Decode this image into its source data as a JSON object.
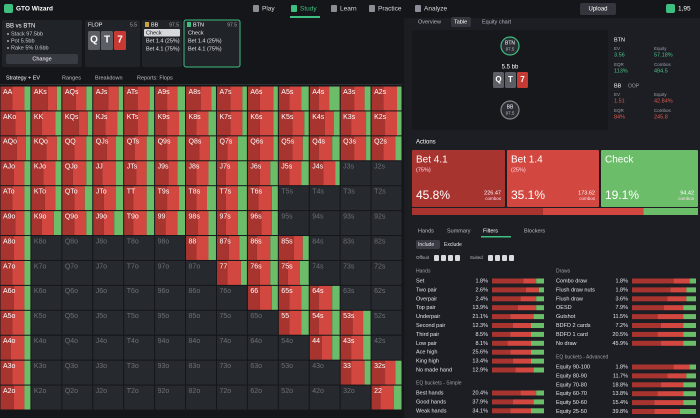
{
  "nav": {
    "brand": "GTO Wizard",
    "items": [
      "Play",
      "Study",
      "Learn",
      "Practice",
      "Analyze"
    ],
    "upload": "Upload",
    "balance": "1,95"
  },
  "spot": {
    "title": "BB vs BTN",
    "lines": [
      "Stack 97.5bb",
      "Pot 5.5bb",
      "Rake 5% 0.6bb"
    ],
    "button": "Change"
  },
  "flop": {
    "label": "FLOP",
    "pot": "5.5",
    "cards": [
      "Q",
      "T",
      "7"
    ]
  },
  "players": [
    {
      "name": "BB",
      "stack": "97.5",
      "options": [
        "Check",
        "Bet 1.4 (25%)",
        "Bet 4.1 (75%)"
      ]
    },
    {
      "name": "BTN",
      "stack": "97.5",
      "options": [
        "Check",
        "Bet 1.4 (25%)",
        "Bet 4.1 (75%)"
      ]
    }
  ],
  "toolbar": [
    "Strategy + EV",
    "Ranges",
    "Breakdown",
    "Reports: Flops"
  ],
  "grid": {
    "hands": [
      [
        "AA",
        "AKs",
        "AQs",
        "AJs",
        "ATs",
        "A9s",
        "A8s",
        "A7s",
        "A6s",
        "A5s",
        "A4s",
        "A3s",
        "A2s"
      ],
      [
        "AKo",
        "KK",
        "KQs",
        "KJs",
        "KTs",
        "K9s",
        "K8s",
        "K7s",
        "K6s",
        "K5s",
        "K4s",
        "K3s",
        "K2s"
      ],
      [
        "AQo",
        "KQo",
        "QQ",
        "QJs",
        "QTs",
        "Q9s",
        "Q8s",
        "Q7s",
        "Q6s",
        "Q5s",
        "Q4s",
        "Q3s",
        "Q2s"
      ],
      [
        "AJo",
        "KJo",
        "QJo",
        "JJ",
        "JTs",
        "J9s",
        "J8s",
        "J7s",
        "J6s",
        "J5s",
        "J4s",
        "J3s",
        "J2s"
      ],
      [
        "ATo",
        "KTo",
        "QTo",
        "JTo",
        "TT",
        "T9s",
        "T8s",
        "T7s",
        "T6s",
        "T5s",
        "T4s",
        "T3s",
        "T2s"
      ],
      [
        "A9o",
        "K9o",
        "Q9o",
        "J9o",
        "T9o",
        "99",
        "98s",
        "97s",
        "96s",
        "95s",
        "94s",
        "93s",
        "92s"
      ],
      [
        "A8o",
        "K8o",
        "Q8o",
        "J8o",
        "T8o",
        "98o",
        "88",
        "87s",
        "86s",
        "85s",
        "84s",
        "83s",
        "82s"
      ],
      [
        "A7o",
        "K7o",
        "Q7o",
        "J7o",
        "T7o",
        "97o",
        "87o",
        "77",
        "76s",
        "75s",
        "74s",
        "73s",
        "72s"
      ],
      [
        "A6o",
        "K6o",
        "Q6o",
        "J6o",
        "T6o",
        "96o",
        "86o",
        "76o",
        "66",
        "65s",
        "64s",
        "63s",
        "62s"
      ],
      [
        "A5o",
        "K5o",
        "Q5o",
        "J5o",
        "T5o",
        "95o",
        "85o",
        "75o",
        "65o",
        "55",
        "54s",
        "53s",
        "52s"
      ],
      [
        "A4o",
        "K4o",
        "Q4o",
        "J4o",
        "T4o",
        "94o",
        "84o",
        "74o",
        "64o",
        "54o",
        "44",
        "43s",
        "42s"
      ],
      [
        "A3o",
        "K3o",
        "Q3o",
        "J3o",
        "T3o",
        "93o",
        "83o",
        "73o",
        "63o",
        "53o",
        "43o",
        "33",
        "32s"
      ],
      [
        "A2o",
        "K2o",
        "Q2o",
        "J2o",
        "T2o",
        "92o",
        "82o",
        "72o",
        "62o",
        "52o",
        "42o",
        "32o",
        "22"
      ]
    ],
    "mix": [
      [
        [
          40,
          40,
          20
        ],
        [
          55,
          30,
          15
        ],
        [
          45,
          35,
          20
        ],
        [
          50,
          35,
          15
        ],
        [
          45,
          40,
          15
        ],
        [
          40,
          35,
          25
        ],
        [
          50,
          35,
          15
        ],
        [
          45,
          40,
          15
        ],
        [
          40,
          45,
          15
        ],
        [
          35,
          40,
          25
        ],
        [
          30,
          35,
          35
        ],
        [
          45,
          35,
          20
        ],
        [
          40,
          45,
          15
        ]
      ],
      [
        [
          50,
          35,
          15
        ],
        [
          35,
          45,
          20
        ],
        [
          55,
          30,
          15
        ],
        [
          40,
          40,
          20
        ],
        [
          45,
          35,
          20
        ],
        [
          40,
          40,
          20
        ],
        [
          35,
          40,
          25
        ],
        [
          45,
          40,
          15
        ],
        [
          40,
          45,
          15
        ],
        [
          45,
          40,
          15
        ],
        [
          50,
          30,
          20
        ],
        [
          35,
          50,
          15
        ],
        [
          45,
          40,
          15
        ]
      ],
      [
        [
          55,
          30,
          15
        ],
        [
          50,
          35,
          15
        ],
        [
          40,
          40,
          20
        ],
        [
          45,
          30,
          25
        ],
        [
          35,
          40,
          25
        ],
        [
          40,
          35,
          25
        ],
        [
          45,
          35,
          20
        ],
        [
          35,
          35,
          30
        ],
        [
          40,
          45,
          15
        ],
        [
          45,
          35,
          20
        ],
        [
          30,
          45,
          25
        ],
        [
          45,
          40,
          15
        ],
        [
          40,
          40,
          20
        ]
      ],
      [
        [
          45,
          35,
          20
        ],
        [
          40,
          40,
          20
        ],
        [
          35,
          45,
          20
        ],
        [
          30,
          45,
          25
        ],
        [
          40,
          35,
          25
        ],
        [
          45,
          30,
          25
        ],
        [
          35,
          40,
          25
        ],
        [
          30,
          40,
          30
        ],
        [
          40,
          35,
          25
        ],
        [
          35,
          40,
          25
        ],
        [
          45,
          40,
          15
        ],
        null,
        null
      ],
      [
        [
          40,
          40,
          20
        ],
        [
          45,
          35,
          20
        ],
        [
          40,
          35,
          25
        ],
        [
          35,
          40,
          25
        ],
        [
          30,
          45,
          25
        ],
        [
          40,
          40,
          20
        ],
        [
          35,
          35,
          30
        ],
        [
          30,
          40,
          30
        ],
        [
          35,
          45,
          20
        ],
        null,
        null,
        null,
        null
      ],
      [
        [
          50,
          30,
          20
        ],
        [
          35,
          40,
          25
        ],
        [
          40,
          40,
          20
        ],
        [
          35,
          35,
          30
        ],
        [
          30,
          45,
          25
        ],
        [
          35,
          40,
          25
        ],
        [
          40,
          35,
          25
        ],
        [
          30,
          40,
          30
        ],
        [
          45,
          35,
          20
        ],
        null,
        null,
        null,
        null
      ],
      [
        [
          45,
          35,
          20
        ],
        null,
        null,
        null,
        null,
        null,
        [
          35,
          40,
          25
        ],
        [
          40,
          35,
          25
        ],
        [
          30,
          45,
          25
        ],
        [
          50,
          30,
          20
        ],
        null,
        null,
        null
      ],
      [
        [
          40,
          40,
          20
        ],
        null,
        null,
        null,
        null,
        null,
        null,
        [
          35,
          45,
          20
        ],
        [
          40,
          35,
          25
        ],
        [
          30,
          40,
          30
        ],
        null,
        null,
        null
      ],
      [
        [
          45,
          35,
          20
        ],
        null,
        null,
        null,
        null,
        null,
        null,
        null,
        [
          40,
          40,
          20
        ],
        [
          35,
          40,
          25
        ],
        [
          30,
          45,
          25
        ],
        null,
        null
      ],
      [
        [
          40,
          40,
          20
        ],
        null,
        null,
        null,
        null,
        null,
        null,
        null,
        null,
        [
          35,
          40,
          25
        ],
        [
          30,
          45,
          25
        ],
        [
          40,
          35,
          25
        ],
        null
      ],
      [
        [
          35,
          45,
          20
        ],
        null,
        null,
        null,
        null,
        null,
        null,
        null,
        null,
        null,
        [
          40,
          35,
          25
        ],
        [
          35,
          40,
          25
        ],
        null
      ],
      [
        [
          40,
          40,
          20
        ],
        null,
        null,
        null,
        null,
        null,
        null,
        null,
        null,
        null,
        null,
        [
          35,
          45,
          20
        ],
        [
          45,
          35,
          20
        ]
      ],
      [
        [
          45,
          35,
          20
        ],
        null,
        null,
        null,
        null,
        null,
        null,
        null,
        null,
        null,
        null,
        null,
        [
          30,
          45,
          25
        ]
      ]
    ]
  },
  "right_tabs": [
    "Overview",
    "Table",
    "Equity chart"
  ],
  "table": {
    "top": {
      "name": "BTN",
      "stack": "97.5"
    },
    "pot": "5.5 bb",
    "board": [
      "Q",
      "T",
      "7"
    ],
    "bottom": {
      "name": "BB",
      "stack": "97.5"
    }
  },
  "stats": [
    {
      "player": "BTN",
      "labels": [
        "EV",
        "Equity",
        "EQR",
        "Combos"
      ],
      "values": [
        "3.56",
        "57.18%",
        "113%",
        "494.5"
      ]
    },
    {
      "player": "BB",
      "tag": "OOP",
      "labels": [
        "EV",
        "Equity",
        "EQR",
        "Combos"
      ],
      "values": [
        "1.51",
        "42.84%",
        "84%",
        "245.8"
      ]
    }
  ],
  "actions": {
    "title": "Actions",
    "names": [
      "Bet 4.1",
      "Bet 1.4",
      "Check"
    ],
    "sizings": [
      "(75%)",
      "(25%)"
    ],
    "values": [
      45.8,
      35.1,
      19.1
    ],
    "value_labels": [
      "45.8%",
      "35.1%",
      "19.1%"
    ],
    "combos": [
      "226.47",
      "173.62",
      "94.42"
    ],
    "combos_unit": "combos",
    "colors": [
      "#a8342f",
      "#d2473f",
      "#6cbd6a"
    ]
  },
  "filters": {
    "tabs": [
      "Hands",
      "Summary",
      "Filters",
      "Blockers"
    ],
    "modes": [
      "Include",
      "Exclude"
    ],
    "suit_labels": [
      "Offsuit",
      "Suited"
    ],
    "groups": [
      {
        "title": "Hands",
        "rows": [
          {
            "label": "Set",
            "pct": "1.8%",
            "mix": [
              60,
              25,
              15
            ]
          },
          {
            "label": "Two pair",
            "pct": "2.6%",
            "mix": [
              65,
              25,
              10
            ]
          },
          {
            "label": "Overpair",
            "pct": "2.4%",
            "mix": [
              55,
              30,
              15
            ]
          },
          {
            "label": "Top pair",
            "pct": "13.9%",
            "mix": [
              50,
              35,
              15
            ]
          },
          {
            "label": "Underpair",
            "pct": "21.1%",
            "mix": [
              35,
              45,
              20
            ]
          },
          {
            "label": "Second pair",
            "pct": "12.3%",
            "mix": [
              40,
              35,
              25
            ]
          },
          {
            "label": "Third pair",
            "pct": "8.5%",
            "mix": [
              35,
              40,
              25
            ]
          },
          {
            "label": "Low pair",
            "pct": "8.1%",
            "mix": [
              30,
              45,
              25
            ]
          },
          {
            "label": "Ace high",
            "pct": "25.6%",
            "mix": [
              35,
              40,
              25
            ]
          },
          {
            "label": "King high",
            "pct": "13.4%",
            "mix": [
              40,
              35,
              25
            ]
          },
          {
            "label": "No made hand",
            "pct": "12.9%",
            "mix": [
              45,
              35,
              20
            ]
          }
        ]
      },
      {
        "title": "EQ buckets - Simple",
        "rows": [
          {
            "label": "Best hands",
            "pct": "20.4%",
            "mix": [
              55,
              30,
              15
            ]
          },
          {
            "label": "Good hands",
            "pct": "37.9%",
            "mix": [
              40,
              40,
              20
            ]
          },
          {
            "label": "Weak hands",
            "pct": "34.1%",
            "mix": [
              35,
              40,
              25
            ]
          }
        ]
      },
      {
        "title": "Draws",
        "rows": [
          {
            "label": "Combo draw",
            "pct": "1.8%",
            "mix": [
              65,
              25,
              10
            ]
          },
          {
            "label": "Flush draw nuts",
            "pct": "1.8%",
            "mix": [
              60,
              25,
              15
            ]
          },
          {
            "label": "Flush draw",
            "pct": "3.6%",
            "mix": [
              55,
              30,
              15
            ]
          },
          {
            "label": "OESD",
            "pct": "7.9%",
            "mix": [
              50,
              30,
              20
            ]
          },
          {
            "label": "Gutshot",
            "pct": "11.5%",
            "mix": [
              40,
              40,
              20
            ]
          },
          {
            "label": "BDFD 2 cards",
            "pct": "7.2%",
            "mix": [
              45,
              35,
              20
            ]
          },
          {
            "label": "BDFD 1 card",
            "pct": "20.5%",
            "mix": [
              40,
              40,
              20
            ]
          },
          {
            "label": "No draw",
            "pct": "45.9%",
            "mix": [
              45,
              35,
              20
            ]
          }
        ]
      },
      {
        "title": "EQ buckets - Advanced",
        "rows": [
          {
            "label": "Equity 90-100",
            "pct": "1.8%",
            "mix": [
              65,
              25,
              10
            ]
          },
          {
            "label": "Equity 80-90",
            "pct": "11.7%",
            "mix": [
              55,
              30,
              15
            ]
          },
          {
            "label": "Equity 70-80",
            "pct": "18.8%",
            "mix": [
              45,
              35,
              20
            ]
          },
          {
            "label": "Equity 60-70",
            "pct": "13.8%",
            "mix": [
              40,
              40,
              20
            ]
          },
          {
            "label": "Equity 50-60",
            "pct": "15.4%",
            "mix": [
              35,
              45,
              20
            ]
          },
          {
            "label": "Equity 25-50",
            "pct": "39.8%",
            "mix": [
              35,
              40,
              25
            ]
          }
        ]
      }
    ]
  }
}
